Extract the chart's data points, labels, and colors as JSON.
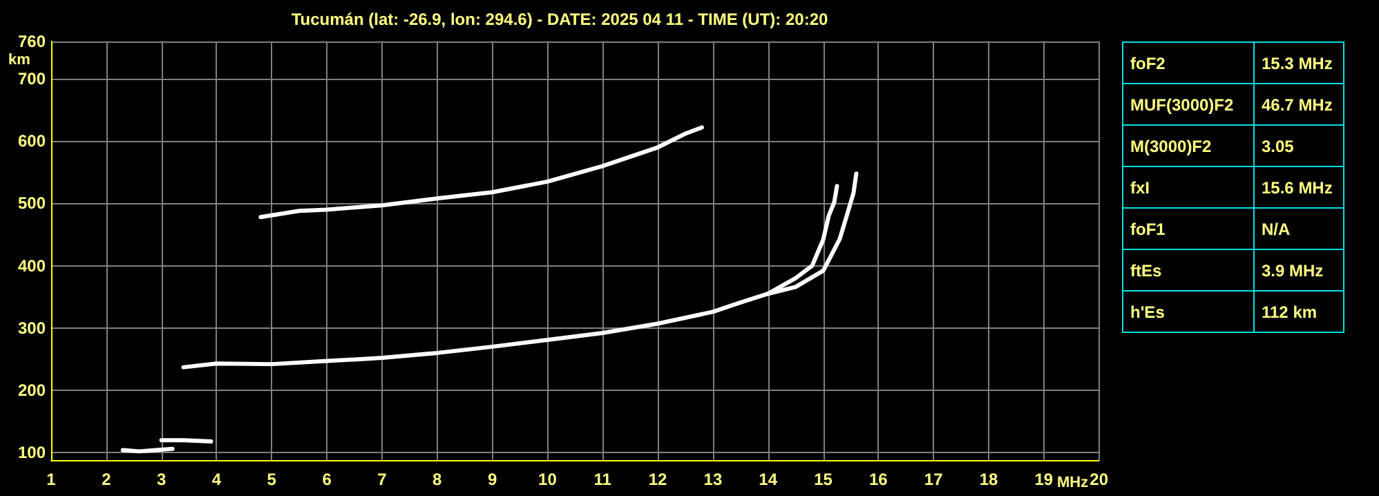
{
  "chart_data": [
    {
      "type": "line",
      "title": "Tucumán (lat: -26.9, lon: 294.6) - DATE: 2025 04 11 - TIME (UT): 20:20",
      "xlabel": "MHz",
      "ylabel": "km",
      "xlim": [
        1,
        20
      ],
      "xticks": [
        1,
        2,
        3,
        4,
        5,
        6,
        7,
        8,
        9,
        10,
        11,
        12,
        13,
        14,
        15,
        16,
        17,
        18,
        19,
        20
      ],
      "ylim": [
        88,
        760
      ],
      "yticks": [
        100,
        200,
        300,
        400,
        500,
        600,
        700,
        760
      ],
      "grid": true,
      "marker": "none",
      "line_style": "solid",
      "series": [
        {
          "color": "#ffffff",
          "x": [
            2.3,
            2.6,
            2.9,
            3.2
          ],
          "values": [
            104,
            102,
            104,
            106
          ]
        },
        {
          "color": "#ffffff",
          "x": [
            3.0,
            3.4,
            3.9
          ],
          "values": [
            120,
            120,
            118
          ]
        },
        {
          "color": "#ffffff",
          "x": [
            3.4,
            4,
            5,
            6,
            7,
            8,
            9,
            10,
            11,
            12,
            13,
            13.5,
            14,
            14.5,
            14.8,
            15,
            15.1,
            15.2,
            15.25
          ],
          "values": [
            237,
            243,
            242,
            247,
            252,
            260,
            270,
            281,
            292,
            307,
            326,
            341,
            355,
            380,
            400,
            442,
            480,
            502,
            528
          ]
        },
        {
          "color": "#ffffff",
          "x": [
            14,
            14.5,
            15,
            15.3,
            15.45,
            15.55,
            15.6
          ],
          "values": [
            355,
            366,
            392,
            443,
            487,
            517,
            548
          ]
        },
        {
          "color": "#ffffff",
          "x": [
            4.8,
            5.5,
            6,
            7,
            8,
            9,
            10,
            11,
            12,
            12.5,
            12.8
          ],
          "values": [
            478,
            488,
            490,
            497,
            508,
            518,
            535,
            560,
            590,
            612,
            622
          ]
        }
      ]
    },
    {
      "type": "other",
      "annotations": [
        "foF2",
        "15.3 MHz",
        "MUF(3000)F2",
        "46.7 MHz",
        "M(3000)F2",
        "3.05",
        "fxI",
        "15.6 MHz",
        "foF1",
        "N/A",
        "ftEs",
        "3.9 MHz",
        "h'Es",
        "112 km"
      ]
    }
  ]
}
